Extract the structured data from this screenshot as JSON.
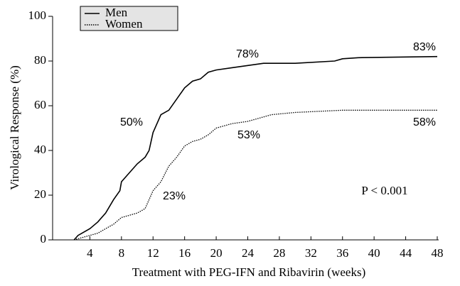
{
  "chart_data": {
    "type": "line",
    "xlabel": "Treatment with PEG-IFN and Ribavirin (weeks)",
    "ylabel": "Virological Response (%)",
    "xlim": [
      0,
      48
    ],
    "ylim": [
      0,
      100
    ],
    "xticks": [
      4,
      8,
      12,
      16,
      20,
      24,
      28,
      32,
      36,
      40,
      44,
      48
    ],
    "yticks": [
      0,
      20,
      40,
      60,
      80,
      100
    ],
    "legend": "top-left",
    "series": [
      {
        "name": "Men",
        "color": "#000000",
        "style": "solid",
        "x": [
          2,
          2.5,
          3,
          4,
          5,
          6,
          7,
          7.8,
          8,
          9,
          10,
          11,
          11.5,
          12,
          12.5,
          13,
          14,
          15,
          16,
          17,
          18,
          19,
          20,
          22,
          24,
          26,
          30,
          35,
          36,
          38,
          48
        ],
        "values": [
          0,
          2,
          3,
          5,
          8,
          12,
          18,
          22,
          26,
          30,
          34,
          37,
          40,
          48,
          52,
          56,
          58,
          63,
          68,
          71,
          72,
          75,
          76,
          77,
          78,
          79,
          79,
          80,
          81,
          81.5,
          82
        ]
      },
      {
        "name": "Women",
        "color": "#000000",
        "style": "dotted",
        "x": [
          2,
          3,
          4,
          5,
          6,
          7,
          8,
          9,
          10,
          11,
          12,
          13,
          14,
          15,
          16,
          17,
          18,
          19,
          20,
          21,
          22,
          24,
          25,
          27,
          30,
          36,
          48
        ],
        "values": [
          0,
          1,
          2,
          3,
          5,
          7,
          10,
          11,
          12,
          14,
          22,
          26,
          33,
          37,
          42,
          44,
          45,
          47,
          50,
          51,
          52,
          53,
          54,
          56,
          57,
          58,
          58
        ]
      }
    ],
    "annotations": [
      "50%",
      "23%",
      "78%",
      "53%",
      "83%",
      "58%",
      "P < 0.001"
    ]
  }
}
